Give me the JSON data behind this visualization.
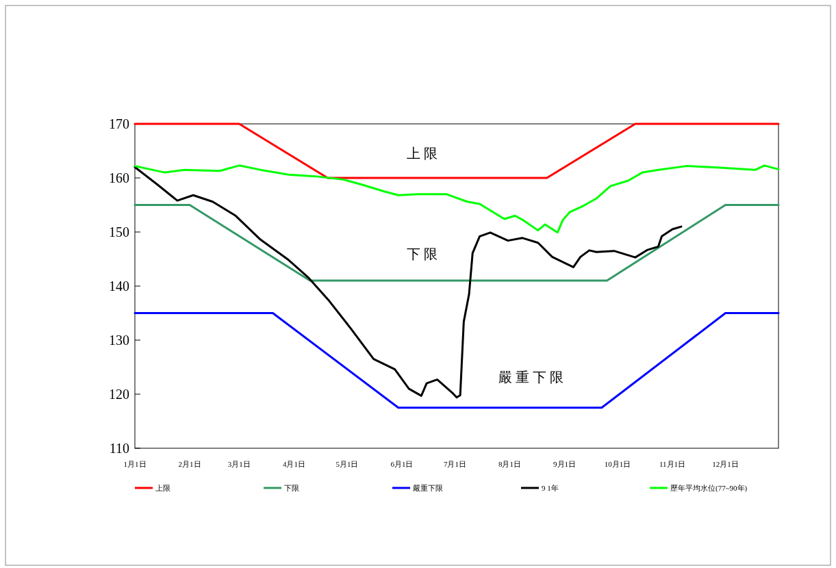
{
  "chart_data": {
    "type": "line",
    "xlim": [
      "--01-01",
      "--12-31"
    ],
    "xticks": [
      {
        "value": "--01-01",
        "label": "1月1日"
      },
      {
        "value": "--02-01",
        "label": "2月1日"
      },
      {
        "value": "--03-01",
        "label": "3月1日"
      },
      {
        "value": "--04-01",
        "label": "4月1日"
      },
      {
        "value": "--05-01",
        "label": "5月1日"
      },
      {
        "value": "--06-01",
        "label": "6月1日"
      },
      {
        "value": "--07-01",
        "label": "7月1日"
      },
      {
        "value": "--08-01",
        "label": "8月1日"
      },
      {
        "value": "--09-01",
        "label": "9月1日"
      },
      {
        "value": "--10-01",
        "label": "10月1日"
      },
      {
        "value": "--11-01",
        "label": "11月1日"
      },
      {
        "value": "--12-01",
        "label": "12月1日"
      }
    ],
    "ylim": [
      110,
      170
    ],
    "yticks": [
      110,
      120,
      130,
      140,
      150,
      160,
      170
    ],
    "series": [
      {
        "name": "上限",
        "color": "#ff0000",
        "x": [
          "--01-01",
          "--03-01",
          "--04-20",
          "--08-22",
          "--10-11",
          "--12-31"
        ],
        "values": [
          170,
          170,
          160,
          160,
          170,
          170
        ]
      },
      {
        "name": "下限",
        "color": "#339966",
        "x": [
          "--01-01",
          "--02-01",
          "--04-10",
          "--09-25",
          "--12-01",
          "--12-31"
        ],
        "values": [
          155,
          155,
          141,
          141,
          155,
          155
        ]
      },
      {
        "name": "嚴重下限",
        "color": "#0000ff",
        "x": [
          "--01-01",
          "--03-20",
          "--05-30",
          "--09-22",
          "--12-01",
          "--12-31"
        ],
        "values": [
          135,
          135,
          117.5,
          117.5,
          135,
          135
        ]
      },
      {
        "name": "9 1年",
        "color": "#000000",
        "x": [
          "--01-01",
          "--01-14",
          "--01-25",
          "--02-03",
          "--02-14",
          "--02-27",
          "--03-13",
          "--03-29",
          "--04-09",
          "--04-21",
          "--05-03",
          "--05-16",
          "--05-28",
          "--06-05",
          "--06-12",
          "--06-15",
          "--06-21",
          "--06-30",
          "--07-02",
          "--07-04",
          "--07-06",
          "--07-09",
          "--07-11",
          "--07-15",
          "--07-21",
          "--07-31",
          "--08-08",
          "--08-17",
          "--08-25",
          "--09-06",
          "--09-10",
          "--09-15",
          "--09-19",
          "--09-29",
          "--10-11",
          "--10-18",
          "--10-24",
          "--10-26",
          "--11-01",
          "--11-06"
        ],
        "values": [
          162.0,
          158.7,
          155.8,
          156.8,
          155.6,
          153.0,
          148.6,
          144.8,
          141.6,
          137.2,
          132.2,
          126.5,
          124.6,
          121.0,
          119.7,
          122.0,
          122.7,
          120.1,
          119.4,
          119.8,
          133.4,
          138.5,
          146.1,
          149.2,
          149.9,
          148.4,
          148.9,
          148.0,
          145.4,
          143.5,
          145.4,
          146.6,
          146.3,
          146.5,
          145.3,
          146.7,
          147.3,
          149.2,
          150.5,
          151.0
        ]
      },
      {
        "name": "歷年平均水位(77~90年)",
        "color": "#00ff00",
        "x": [
          "--01-01",
          "--01-18",
          "--01-29",
          "--02-18",
          "--03-01",
          "--03-13",
          "--03-29",
          "--04-13",
          "--04-29",
          "--05-10",
          "--05-22",
          "--05-30",
          "--06-10",
          "--06-26",
          "--07-08",
          "--07-15",
          "--07-29",
          "--08-04",
          "--08-08",
          "--08-17",
          "--08-21",
          "--08-28",
          "--08-31",
          "--09-04",
          "--09-12",
          "--09-19",
          "--09-27",
          "--10-07",
          "--10-15",
          "--10-24",
          "--11-09",
          "--11-28",
          "--12-18",
          "--12-23",
          "--12-31"
        ],
        "values": [
          162.2,
          161.0,
          161.5,
          161.3,
          162.3,
          161.5,
          160.6,
          160.3,
          159.7,
          158.7,
          157.5,
          156.8,
          157.0,
          157.0,
          155.6,
          155.2,
          152.4,
          153.0,
          152.3,
          150.3,
          151.4,
          149.9,
          152.2,
          153.7,
          154.9,
          156.2,
          158.5,
          159.5,
          161.0,
          161.5,
          162.2,
          161.9,
          161.5,
          162.3,
          161.6
        ]
      }
    ],
    "annotations": [
      "上 限",
      "下 限",
      "嚴 重 下 限"
    ],
    "legend": "bottom"
  }
}
